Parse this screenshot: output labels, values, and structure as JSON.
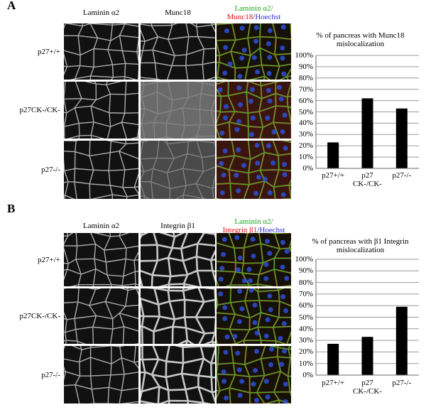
{
  "panels": [
    {
      "label": "A",
      "columns": [
        "Laminin α2",
        "Munc18"
      ],
      "merge_label": [
        "Laminin α2/",
        "Munc18",
        "/",
        "Hoechst"
      ],
      "rows": [
        "p27+/+",
        "p27CK-/CK-",
        "p27-/-"
      ]
    },
    {
      "label": "B",
      "columns": [
        "Laminin α2",
        "Integrin β1"
      ],
      "merge_label": [
        "Laminin α2/",
        "Integrin β1",
        "/",
        "Hoechst"
      ],
      "rows": [
        "p27+/+",
        "p27CK-/CK-",
        "p27-/-"
      ]
    }
  ],
  "chart_data": [
    {
      "type": "bar",
      "title": "% of pancreas with Munc18 mislocalization",
      "categories": [
        "p27+/+",
        "p27 CK-/CK-",
        "p27-/-"
      ],
      "values": [
        23,
        62,
        53
      ],
      "color": "#000000",
      "ylim": [
        0,
        100
      ],
      "yticks": [
        {
          "value": 0,
          "label": "0%"
        },
        {
          "value": 10,
          "label": "10%"
        },
        {
          "value": 20,
          "label": "20%"
        },
        {
          "value": 30,
          "label": "30%"
        },
        {
          "value": 40,
          "label": "40%"
        },
        {
          "value": 50,
          "label": "50%"
        },
        {
          "value": 60,
          "label": "60%"
        },
        {
          "value": 70,
          "label": "70%"
        },
        {
          "value": 80,
          "label": "80%"
        },
        {
          "value": 90,
          "label": "90%"
        },
        {
          "value": 100,
          "label": "100%"
        }
      ],
      "grid": true
    },
    {
      "type": "bar",
      "title": "% of pancreas with β1 Integrin mislocalization",
      "categories": [
        "p27+/+",
        "p27 CK-/CK-",
        "p27-/-"
      ],
      "values": [
        27,
        33,
        59
      ],
      "color": "#000000",
      "ylim": [
        0,
        100
      ],
      "yticks": [
        {
          "value": 0,
          "label": "0%"
        },
        {
          "value": 10,
          "label": "10%"
        },
        {
          "value": 20,
          "label": "20%"
        },
        {
          "value": 30,
          "label": "30%"
        },
        {
          "value": 40,
          "label": "40%"
        },
        {
          "value": 50,
          "label": "50%"
        },
        {
          "value": 60,
          "label": "60%"
        },
        {
          "value": 70,
          "label": "70%"
        },
        {
          "value": 80,
          "label": "80%"
        },
        {
          "value": 90,
          "label": "90%"
        },
        {
          "value": 100,
          "label": "100%"
        }
      ],
      "grid": true
    }
  ]
}
